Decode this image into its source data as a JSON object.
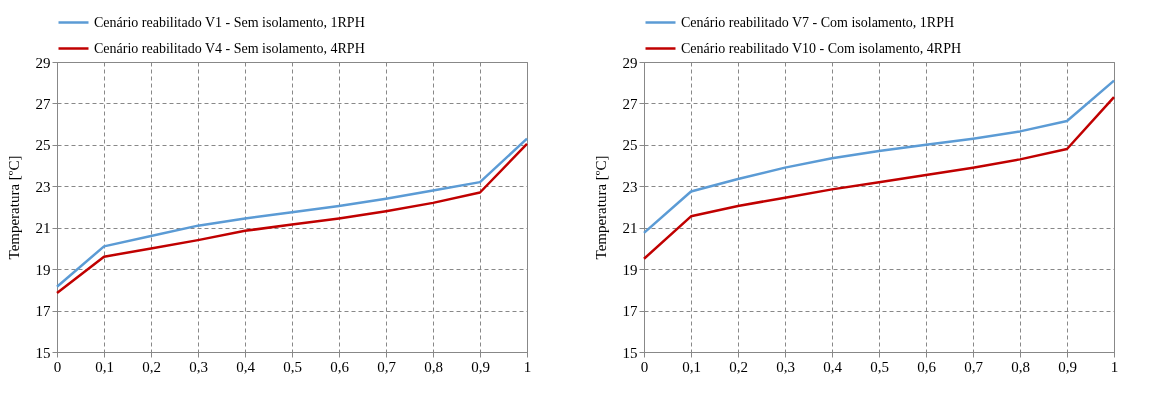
{
  "chart_data": [
    {
      "type": "line",
      "ylabel": "Temperatura [ºC]",
      "x": [
        0,
        0.1,
        0.2,
        0.3,
        0.4,
        0.5,
        0.6,
        0.7,
        0.8,
        0.9,
        1
      ],
      "series": [
        {
          "name": "Cenário reabilitado V1 - Sem isolamento, 1RPH",
          "color": "#5b9bd5",
          "values": [
            18.15,
            20.1,
            20.6,
            21.1,
            21.45,
            21.75,
            22.05,
            22.4,
            22.8,
            23.2,
            25.3
          ]
        },
        {
          "name": "Cenário reabilitado V4 - Sem isolamento, 4RPH",
          "color": "#c00000",
          "values": [
            17.85,
            19.6,
            20.0,
            20.4,
            20.85,
            21.15,
            21.45,
            21.8,
            22.2,
            22.7,
            25.05
          ]
        }
      ],
      "xlim": [
        0,
        1
      ],
      "xticks": [
        0,
        {
          "value": 0.1,
          "label": "0,1"
        },
        {
          "value": 0.2,
          "label": "0,2"
        },
        {
          "value": 0.3,
          "label": "0,3"
        },
        {
          "value": 0.4,
          "label": "0,4"
        },
        {
          "value": 0.5,
          "label": "0,5"
        },
        {
          "value": 0.6,
          "label": "0,6"
        },
        {
          "value": 0.7,
          "label": "0,7"
        },
        {
          "value": 0.8,
          "label": "0,8"
        },
        {
          "value": 0.9,
          "label": "0,9"
        },
        1
      ],
      "ylim": [
        15,
        29
      ],
      "yticks": [
        15,
        17,
        19,
        21,
        23,
        25,
        27,
        29
      ],
      "grid": true,
      "legend": "top",
      "marker": "none",
      "line_style": "solid"
    },
    {
      "type": "line",
      "ylabel": "Temperatura [ºC]",
      "x": [
        0,
        0.1,
        0.2,
        0.3,
        0.4,
        0.5,
        0.6,
        0.7,
        0.8,
        0.9,
        1
      ],
      "series": [
        {
          "name": "Cenário reabilitado V7 - Com isolamento, 1RPH",
          "color": "#5b9bd5",
          "values": [
            20.75,
            22.75,
            23.35,
            23.9,
            24.35,
            24.7,
            25.0,
            25.3,
            25.65,
            26.15,
            28.1
          ]
        },
        {
          "name": "Cenário reabilitado V10 - Com isolamento, 4RPH",
          "color": "#c00000",
          "values": [
            19.5,
            21.55,
            22.05,
            22.45,
            22.85,
            23.2,
            23.55,
            23.9,
            24.3,
            24.8,
            27.3
          ]
        }
      ],
      "xlim": [
        0,
        1
      ],
      "xticks": [
        0,
        {
          "value": 0.1,
          "label": "0,1"
        },
        {
          "value": 0.2,
          "label": "0,2"
        },
        {
          "value": 0.3,
          "label": "0,3"
        },
        {
          "value": 0.4,
          "label": "0,4"
        },
        {
          "value": 0.5,
          "label": "0,5"
        },
        {
          "value": 0.6,
          "label": "0,6"
        },
        {
          "value": 0.7,
          "label": "0,7"
        },
        {
          "value": 0.8,
          "label": "0,8"
        },
        {
          "value": 0.9,
          "label": "0,9"
        },
        1
      ],
      "ylim": [
        15,
        29
      ],
      "yticks": [
        15,
        17,
        19,
        21,
        23,
        25,
        27,
        29
      ],
      "grid": true,
      "legend": "top",
      "marker": "none",
      "line_style": "solid"
    }
  ]
}
